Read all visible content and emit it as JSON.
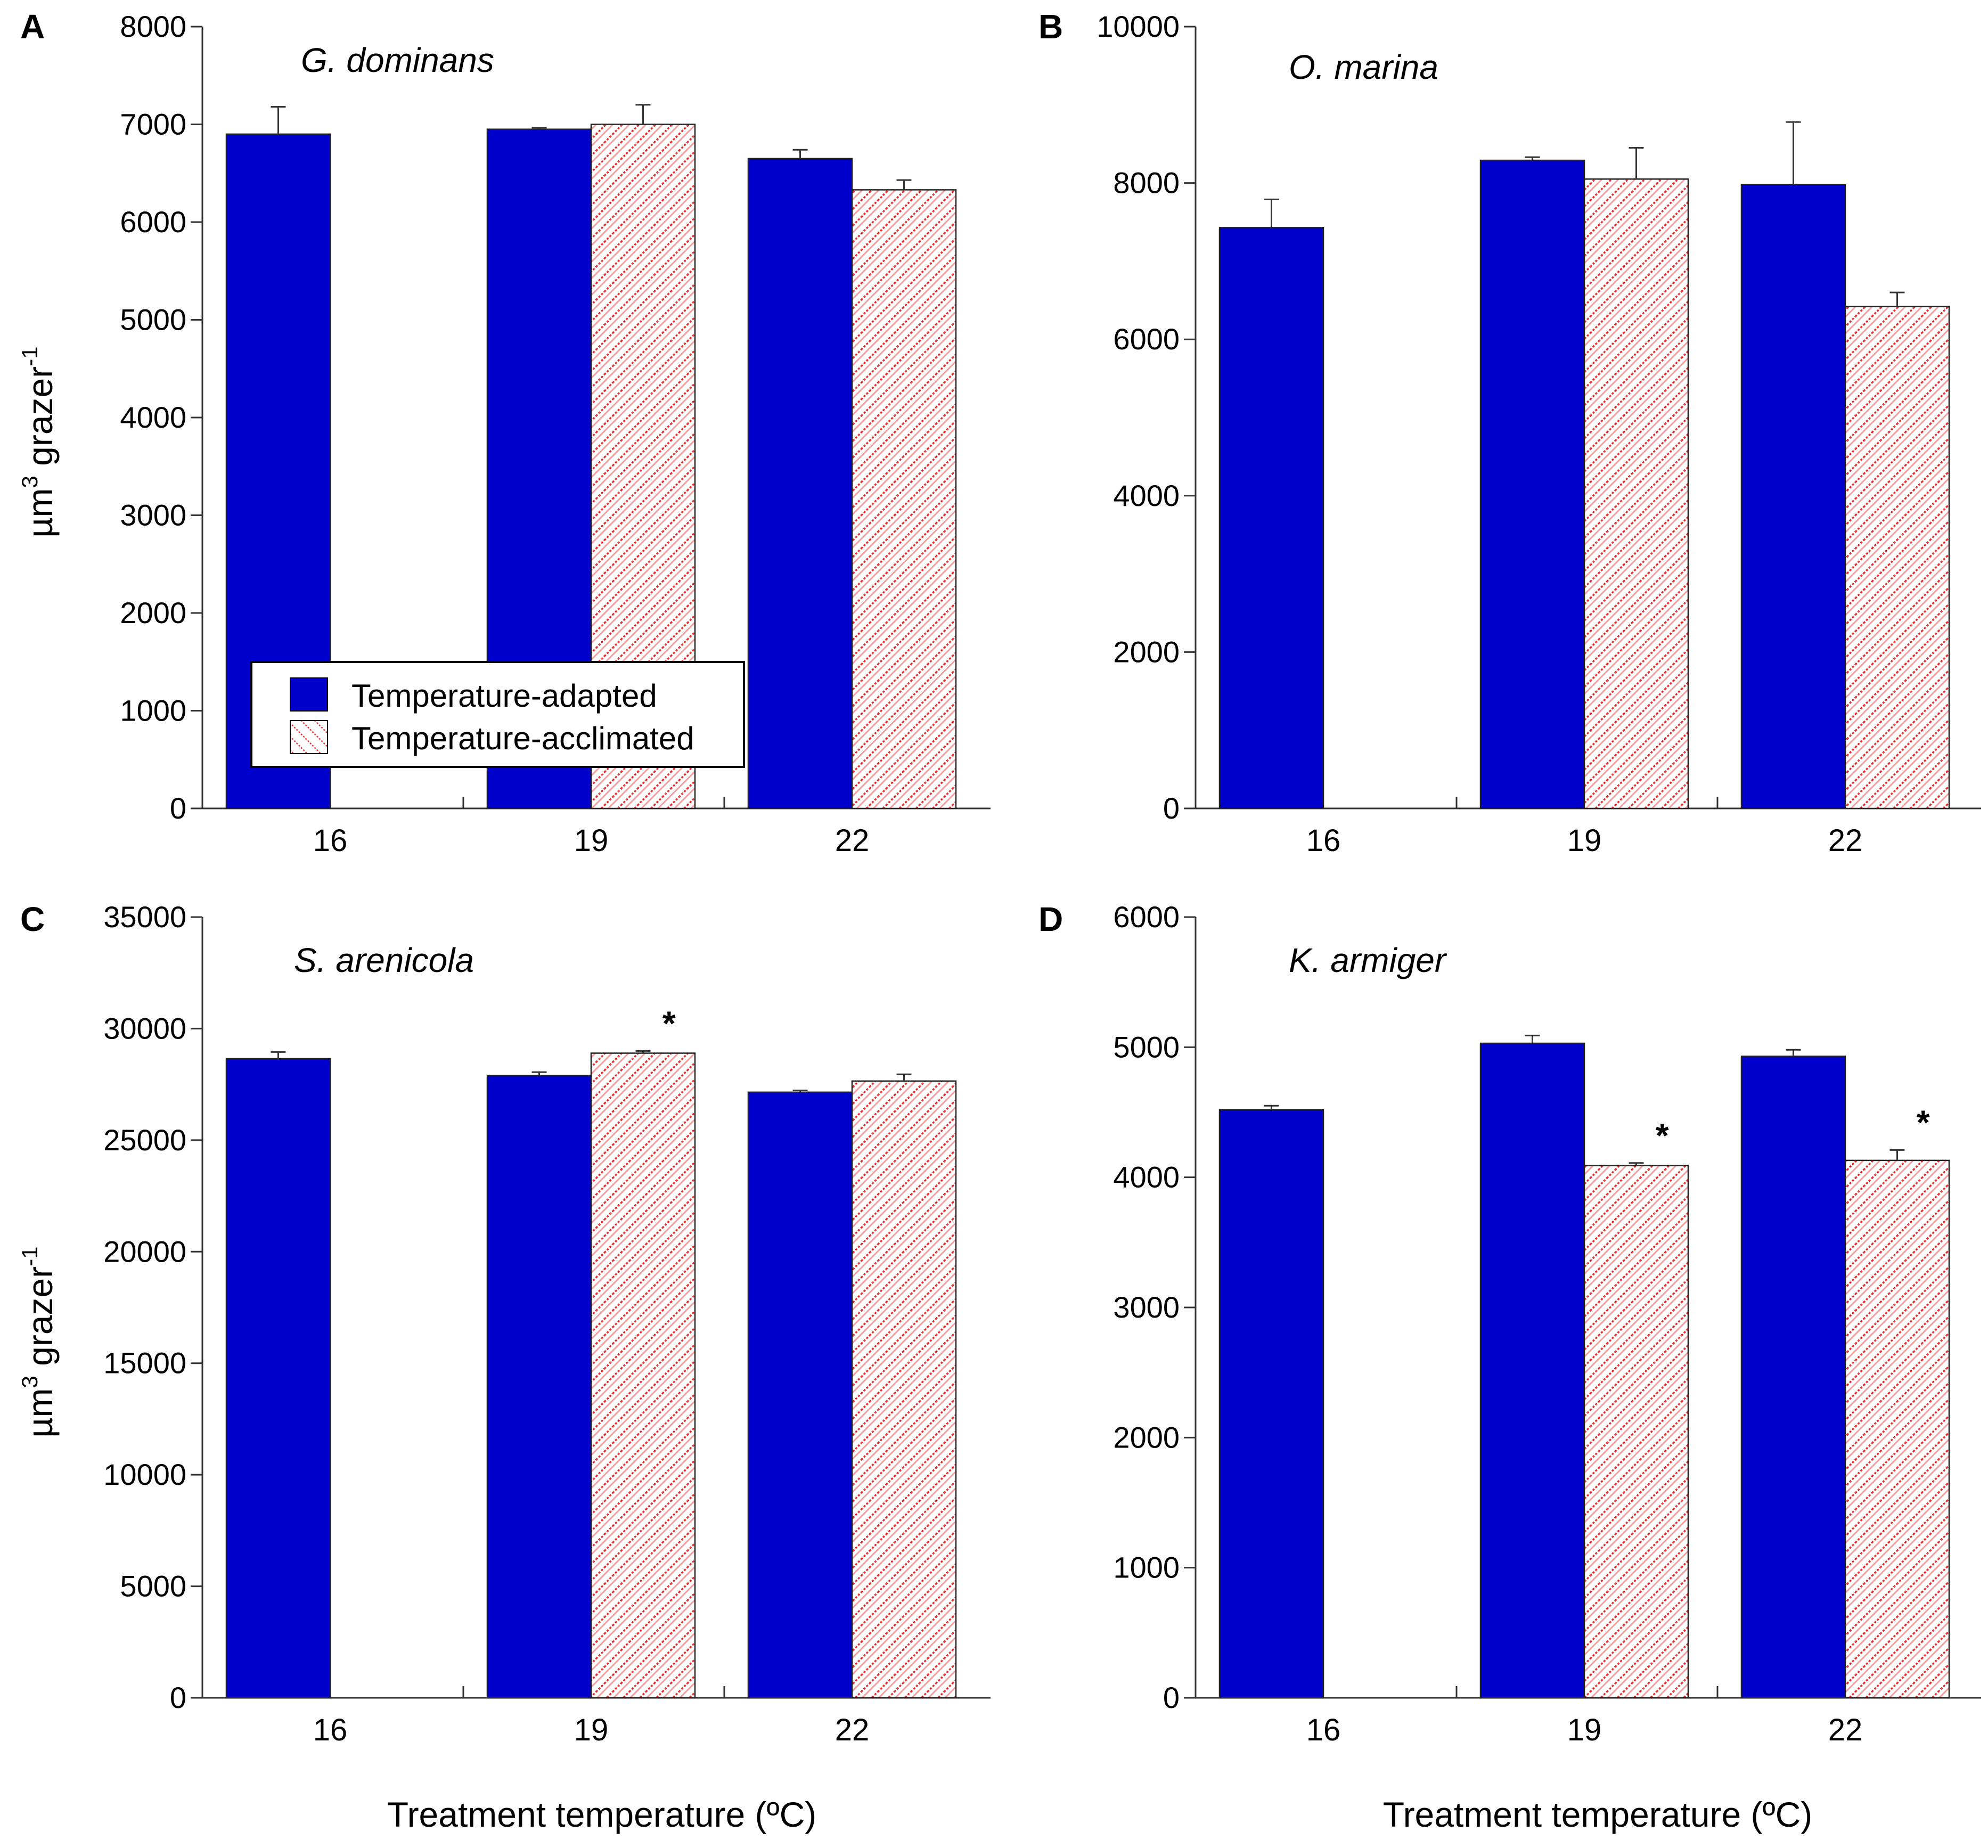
{
  "figure": {
    "x_axis_title": "Treatment temperature (ºC)",
    "y_axis_title_main": "µm",
    "y_axis_title_sup": "3",
    "y_axis_title_rest": " grazer",
    "y_axis_title_sup2": "-1"
  },
  "legend": {
    "adapted_label": "Temperature-adapted",
    "acclimated_label": "Temperature-acclimated"
  },
  "colors": {
    "adapted": "#0000cc",
    "acclimated_stripe": "#e83030",
    "axis": "#333333"
  },
  "chart_data": [
    {
      "type": "bar",
      "panel": "A",
      "title": "G. dominans",
      "categories": [
        "16",
        "19",
        "22"
      ],
      "ylim": [
        0,
        8000
      ],
      "yticks": [
        "0",
        "1000",
        "2000",
        "3000",
        "4000",
        "5000",
        "6000",
        "7000",
        "8000"
      ],
      "ytick_values": [
        0,
        1000,
        2000,
        3000,
        4000,
        5000,
        6000,
        7000,
        8000
      ],
      "xlabel": "",
      "ylabel": "µm3 grazer-1",
      "series": [
        {
          "name": "Temperature-adapted",
          "values": [
            6900,
            6950,
            6650
          ],
          "errors": [
            280,
            15,
            90
          ]
        },
        {
          "name": "Temperature-acclimated",
          "values": [
            null,
            7000,
            6330
          ],
          "errors": [
            null,
            200,
            100
          ]
        }
      ],
      "significance": [
        [
          false,
          false,
          false
        ],
        [
          false,
          false,
          false
        ]
      ]
    },
    {
      "type": "bar",
      "panel": "B",
      "title": "O. marina",
      "categories": [
        "16",
        "19",
        "22"
      ],
      "ylim": [
        0,
        10000
      ],
      "yticks": [
        "0",
        "2000",
        "4000",
        "6000",
        "8000",
        "10000"
      ],
      "ytick_values": [
        0,
        2000,
        4000,
        6000,
        8000,
        10000
      ],
      "xlabel": "",
      "ylabel": "",
      "series": [
        {
          "name": "Temperature-adapted",
          "values": [
            7430,
            8290,
            7980
          ],
          "errors": [
            360,
            40,
            800
          ]
        },
        {
          "name": "Temperature-acclimated",
          "values": [
            null,
            8050,
            6420
          ],
          "errors": [
            null,
            400,
            180
          ]
        }
      ],
      "significance": [
        [
          false,
          false,
          false
        ],
        [
          false,
          false,
          false
        ]
      ]
    },
    {
      "type": "bar",
      "panel": "C",
      "title": "S. arenicola",
      "categories": [
        "16",
        "19",
        "22"
      ],
      "ylim": [
        0,
        35000
      ],
      "yticks": [
        "0",
        "5000",
        "10000",
        "15000",
        "20000",
        "25000",
        "30000",
        "35000"
      ],
      "ytick_values": [
        0,
        5000,
        10000,
        15000,
        20000,
        25000,
        30000,
        35000
      ],
      "xlabel": "Treatment temperature (ºC)",
      "ylabel": "µm3 grazer-1",
      "series": [
        {
          "name": "Temperature-adapted",
          "values": [
            28650,
            27900,
            27150
          ],
          "errors": [
            300,
            150,
            80
          ]
        },
        {
          "name": "Temperature-acclimated",
          "values": [
            null,
            28900,
            27650
          ],
          "errors": [
            null,
            100,
            300
          ]
        }
      ],
      "significance": [
        [
          false,
          false,
          false
        ],
        [
          false,
          true,
          false
        ]
      ],
      "significance_marker": "*"
    },
    {
      "type": "bar",
      "panel": "D",
      "title": "K. armiger",
      "categories": [
        "16",
        "19",
        "22"
      ],
      "ylim": [
        0,
        6000
      ],
      "yticks": [
        "0",
        "1000",
        "2000",
        "3000",
        "4000",
        "5000",
        "6000"
      ],
      "ytick_values": [
        0,
        1000,
        2000,
        3000,
        4000,
        5000,
        6000
      ],
      "xlabel": "Treatment temperature (ºC)",
      "ylabel": "",
      "series": [
        {
          "name": "Temperature-adapted",
          "values": [
            4520,
            5030,
            4930
          ],
          "errors": [
            30,
            60,
            50
          ]
        },
        {
          "name": "Temperature-acclimated",
          "values": [
            null,
            4090,
            4130
          ],
          "errors": [
            null,
            20,
            80
          ]
        }
      ],
      "significance": [
        [
          false,
          false,
          false
        ],
        [
          false,
          true,
          true
        ]
      ],
      "significance_marker": "*"
    }
  ]
}
